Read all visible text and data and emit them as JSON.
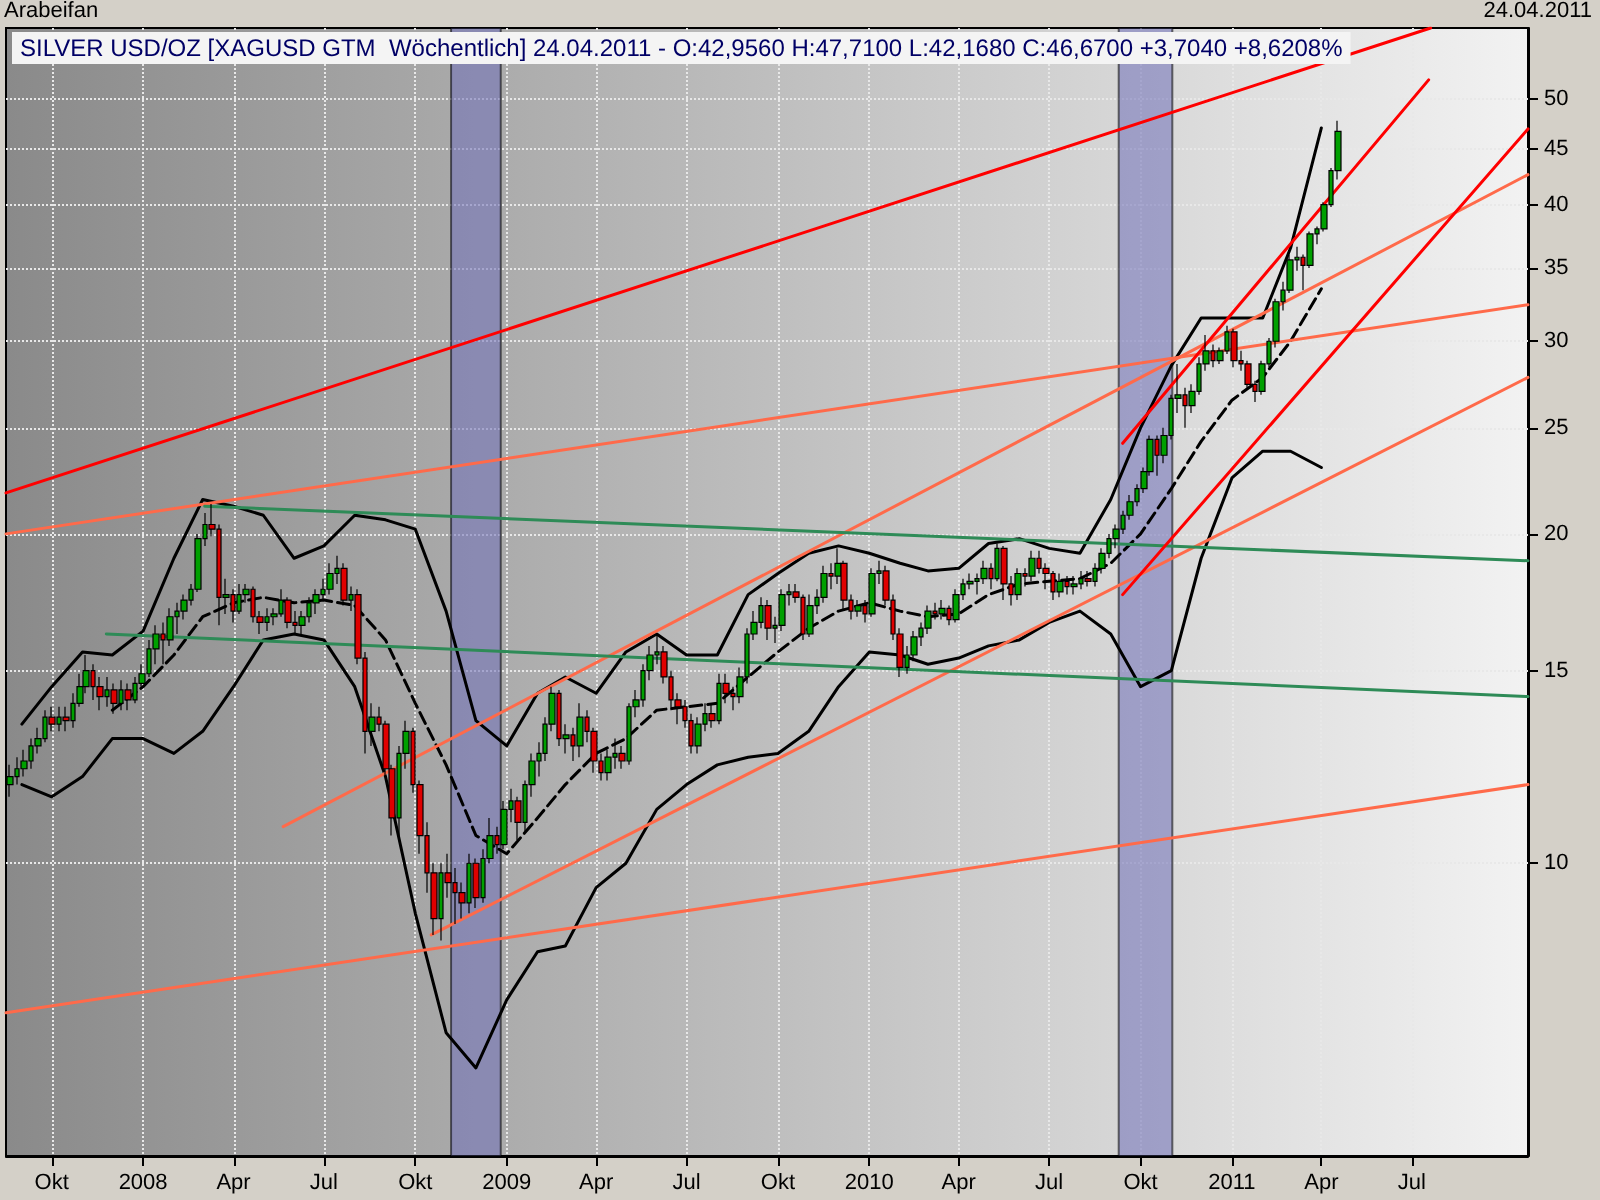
{
  "chart_data": {
    "type": "candlestick",
    "title": "SILVER USD/OZ [XAGUSD GTM  Wöchentlich] 24.04.2011 - O:42,9560 H:47,7100 L:42,1680 C:46,6700 +3,7040 +8,6208%",
    "annotations": [
      "Arabeifan",
      "24.04.2011"
    ],
    "log": "y",
    "grid": true,
    "xlim": [
      "2007-08-16",
      "2011-10-26"
    ],
    "xticks": [
      {
        "value": "2007-10",
        "label": "Okt"
      },
      {
        "value": "2008-01",
        "label": "2008"
      },
      {
        "value": "2008-04",
        "label": "Apr"
      },
      {
        "value": "2008-07",
        "label": "Jul"
      },
      {
        "value": "2008-10",
        "label": "Okt"
      },
      {
        "value": "2009-01",
        "label": "2009"
      },
      {
        "value": "2009-04",
        "label": "Apr"
      },
      {
        "value": "2009-07",
        "label": "Jul"
      },
      {
        "value": "2009-10",
        "label": "Okt"
      },
      {
        "value": "2010-01",
        "label": "2010"
      },
      {
        "value": "2010-04",
        "label": "Apr"
      },
      {
        "value": "2010-07",
        "label": "Jul"
      },
      {
        "value": "2010-10",
        "label": "Okt"
      },
      {
        "value": "2011-01",
        "label": "2011"
      },
      {
        "value": "2011-04",
        "label": "Apr"
      },
      {
        "value": "2011-07",
        "label": "Jul"
      }
    ],
    "ylim": [
      5.4,
      58
    ],
    "yticks": [
      10,
      15,
      20,
      25,
      30,
      35,
      40,
      45,
      50
    ],
    "bands": [
      {
        "axis": "x",
        "from": "2008-11-06",
        "to": "2008-12-26",
        "color": "#7070b8"
      },
      {
        "axis": "x",
        "from": "2010-09-09",
        "to": "2010-11-02",
        "color": "#7070b8"
      }
    ],
    "series": [
      {
        "type": "line",
        "color": "#000000",
        "line_style": "solid",
        "x": [
          "2007-09",
          "2007-10",
          "2007-11",
          "2007-12",
          "2008-01",
          "2008-02",
          "2008-03",
          "2008-04",
          "2008-05",
          "2008-06",
          "2008-07",
          "2008-08",
          "2008-09",
          "2008-10",
          "2008-11",
          "2008-12",
          "2009-01",
          "2009-02",
          "2009-03",
          "2009-04",
          "2009-05",
          "2009-06",
          "2009-07",
          "2009-08",
          "2009-09",
          "2009-10",
          "2009-11",
          "2009-12",
          "2010-01",
          "2010-02",
          "2010-03",
          "2010-04",
          "2010-05",
          "2010-06",
          "2010-07",
          "2010-08",
          "2010-09",
          "2010-10",
          "2010-11",
          "2010-12",
          "2011-01",
          "2011-02",
          "2011-03",
          "2011-04"
        ],
        "values": [
          13.4,
          14.5,
          15.6,
          15.5,
          16.3,
          19,
          21.5,
          21.2,
          20.8,
          19,
          19.5,
          20.8,
          20.6,
          20.2,
          17,
          13.5,
          12.8,
          14.3,
          14.8,
          14.3,
          15.6,
          16.2,
          15.5,
          15.5,
          17.6,
          18.4,
          19.2,
          19.5,
          19.2,
          18.8,
          18.5,
          18.6,
          19.6,
          19.8,
          19.4,
          19.2,
          21.5,
          25,
          28.5,
          31.5,
          31.5,
          31.5,
          36.5,
          47
        ]
      },
      {
        "type": "line",
        "color": "#000000",
        "line_style": "solid",
        "x": [
          "2007-09",
          "2007-10",
          "2007-11",
          "2007-12",
          "2008-01",
          "2008-02",
          "2008-03",
          "2008-04",
          "2008-05",
          "2008-06",
          "2008-07",
          "2008-08",
          "2008-09",
          "2008-10",
          "2008-11",
          "2008-12",
          "2009-01",
          "2009-02",
          "2009-03",
          "2009-04",
          "2009-05",
          "2009-06",
          "2009-07",
          "2009-08",
          "2009-09",
          "2009-10",
          "2009-11",
          "2009-12",
          "2010-01",
          "2010-02",
          "2010-03",
          "2010-04",
          "2010-05",
          "2010-06",
          "2010-07",
          "2010-08",
          "2010-09",
          "2010-10",
          "2010-11",
          "2010-12",
          "2011-01",
          "2011-02",
          "2011-03",
          "2011-04"
        ],
        "values": [
          11.8,
          11.5,
          12,
          13,
          13,
          12.6,
          13.2,
          14.5,
          16,
          16.2,
          16,
          14.5,
          12,
          9,
          7,
          6.5,
          7.5,
          8.3,
          8.4,
          9.5,
          10,
          11.2,
          11.8,
          12.3,
          12.5,
          12.6,
          13.2,
          14.5,
          15.6,
          15.5,
          15.2,
          15.4,
          15.8,
          16,
          16.6,
          17,
          16.2,
          14.5,
          15,
          19,
          22.5,
          23.8,
          23.8,
          23
        ]
      },
      {
        "type": "line",
        "color": "#000000",
        "line_style": "dashed",
        "x": [
          "2007-12",
          "2008-01",
          "2008-02",
          "2008-03",
          "2008-04",
          "2008-05",
          "2008-06",
          "2008-07",
          "2008-08",
          "2008-09",
          "2008-10",
          "2008-11",
          "2008-12",
          "2009-01",
          "2009-02",
          "2009-03",
          "2009-04",
          "2009-05",
          "2009-06",
          "2009-07",
          "2009-08",
          "2009-09",
          "2009-10",
          "2009-11",
          "2009-12",
          "2010-01",
          "2010-02",
          "2010-03",
          "2010-04",
          "2010-05",
          "2010-06",
          "2010-07",
          "2010-08",
          "2010-09",
          "2010-10",
          "2010-11",
          "2010-12",
          "2011-01",
          "2011-02",
          "2011-03",
          "2011-04"
        ],
        "values": [
          13.8,
          14.5,
          15.5,
          16.8,
          17.3,
          17.5,
          17.3,
          17.4,
          17.2,
          16,
          14,
          12.3,
          10.6,
          10.2,
          11,
          11.8,
          12.6,
          13,
          13.8,
          13.9,
          14,
          14.8,
          15.6,
          16.4,
          17,
          17.3,
          17,
          16.8,
          16.9,
          17.6,
          18,
          18.1,
          18.2,
          18.8,
          20,
          22,
          24.3,
          26.5,
          27.8,
          30,
          33.5
        ]
      },
      {
        "type": "line",
        "color": "#ff0000",
        "line_style": "solid",
        "x": [
          "2007-08-16",
          "2011-07-20"
        ],
        "values": [
          21.8,
          58
        ]
      },
      {
        "type": "line",
        "color": "#ff6a4a",
        "line_style": "solid",
        "x": [
          "2007-08-16",
          "2011-10-26"
        ],
        "values": [
          20,
          32.4
        ]
      },
      {
        "type": "line",
        "color": "#ff6a4a",
        "line_style": "solid",
        "x": [
          "2008-05-21",
          "2011-10-26"
        ],
        "values": [
          10.8,
          42.6
        ]
      },
      {
        "type": "line",
        "color": "#ff6a4a",
        "line_style": "solid",
        "x": [
          "2008-10-17",
          "2011-10-26"
        ],
        "values": [
          8.6,
          27.8
        ]
      },
      {
        "type": "line",
        "color": "#ff6a4a",
        "line_style": "solid",
        "x": [
          "2007-08-16",
          "2011-10-26"
        ],
        "values": [
          7.3,
          11.8
        ]
      },
      {
        "type": "line",
        "color": "#2e8b57",
        "line_style": "solid",
        "x": [
          "2008-03-03",
          "2011-10-26"
        ],
        "values": [
          21.2,
          18.9
        ]
      },
      {
        "type": "line",
        "color": "#2e8b57",
        "line_style": "solid",
        "x": [
          "2007-11-25",
          "2011-10-26"
        ],
        "values": [
          16.2,
          14.2
        ]
      },
      {
        "type": "line",
        "color": "#ff0000",
        "line_style": "solid",
        "x": [
          "2010-09-13",
          "2011-07-18"
        ],
        "values": [
          24.2,
          52
        ]
      },
      {
        "type": "line",
        "color": "#ff0000",
        "line_style": "solid",
        "x": [
          "2010-09-13",
          "2011-10-26"
        ],
        "values": [
          17.6,
          46.9
        ]
      },
      {
        "color": "#00a000",
        "x": [
          "2007-08-20",
          "2007-08-27",
          "2007-09-03",
          "2007-09-10",
          "2007-09-17",
          "2007-09-24",
          "2007-10-08",
          "2007-10-22",
          "2007-10-29",
          "2007-11-05",
          "2007-11-26",
          "2007-12-10",
          "2007-12-24",
          "2007-12-31",
          "2008-01-07",
          "2008-01-14",
          "2008-01-28",
          "2008-02-04",
          "2008-02-11",
          "2008-02-18",
          "2008-02-25",
          "2008-03-03",
          "2008-03-24",
          "2008-04-07",
          "2008-04-14",
          "2008-05-05",
          "2008-05-12",
          "2008-05-19",
          "2008-06-09",
          "2008-06-16",
          "2008-06-23",
          "2008-06-30",
          "2008-07-07",
          "2008-07-14",
          "2008-07-28",
          "2008-08-18",
          "2008-09-15",
          "2008-09-22",
          "2008-10-27",
          "2008-11-24",
          "2008-12-08",
          "2008-12-15",
          "2008-12-29",
          "2009-01-05",
          "2009-01-19",
          "2009-01-26",
          "2009-02-02",
          "2009-02-09",
          "2009-02-16",
          "2009-03-02",
          "2009-03-16",
          "2009-04-13",
          "2009-04-20",
          "2009-05-04",
          "2009-05-11",
          "2009-05-18",
          "2009-05-25",
          "2009-06-01",
          "2009-07-13",
          "2009-07-20",
          "2009-08-03",
          "2009-08-24",
          "2009-08-31",
          "2009-09-07",
          "2009-09-14",
          "2009-09-28",
          "2009-10-05",
          "2009-10-12",
          "2009-11-02",
          "2009-11-09",
          "2009-11-16",
          "2009-11-30",
          "2009-12-21",
          "2010-01-04",
          "2010-01-11",
          "2010-02-08",
          "2010-02-15",
          "2010-02-22",
          "2010-03-01",
          "2010-03-15",
          "2010-03-29",
          "2010-04-05",
          "2010-04-12",
          "2010-04-19",
          "2010-04-26",
          "2010-05-10",
          "2010-05-31",
          "2010-06-14",
          "2010-07-12",
          "2010-07-26",
          "2010-08-02",
          "2010-08-16",
          "2010-08-23",
          "2010-08-30",
          "2010-09-06",
          "2010-09-13",
          "2010-09-20",
          "2010-09-27",
          "2010-10-04",
          "2010-10-11",
          "2010-10-25",
          "2010-11-01",
          "2010-11-08",
          "2010-11-22",
          "2010-11-29",
          "2010-12-06",
          "2010-12-20",
          "2010-12-27",
          "2011-01-31",
          "2011-02-07",
          "2011-02-14",
          "2011-02-21",
          "2011-02-28",
          "2011-03-07",
          "2011-03-21",
          "2011-03-28",
          "2011-04-04",
          "2011-04-11",
          "2011-04-18"
        ],
        "ohlc": [
          [
            11.8,
            12.3,
            11.5,
            12.0
          ],
          [
            12.0,
            12.5,
            11.8,
            12.2
          ],
          [
            12.2,
            12.7,
            12.0,
            12.4
          ],
          [
            12.4,
            13.0,
            12.2,
            12.8
          ],
          [
            12.8,
            13.3,
            12.6,
            13.0
          ],
          [
            13.0,
            13.8,
            12.9,
            13.6
          ],
          [
            13.4,
            13.9,
            13.2,
            13.6
          ],
          [
            13.5,
            14.3,
            13.3,
            14.0
          ],
          [
            14.0,
            14.9,
            13.9,
            14.5
          ],
          [
            14.5,
            15.5,
            14.3,
            15.0
          ],
          [
            14.2,
            14.8,
            13.9,
            14.4
          ],
          [
            14.0,
            14.7,
            13.8,
            14.4
          ],
          [
            14.1,
            14.8,
            14.0,
            14.6
          ],
          [
            14.6,
            15.2,
            14.5,
            14.9
          ],
          [
            14.9,
            16.0,
            14.8,
            15.7
          ],
          [
            15.7,
            16.5,
            15.2,
            16.2
          ],
          [
            16.0,
            17.1,
            15.8,
            16.8
          ],
          [
            16.8,
            17.3,
            16.2,
            17.0
          ],
          [
            17.0,
            17.6,
            16.7,
            17.4
          ],
          [
            17.4,
            18.0,
            17.2,
            17.8
          ],
          [
            17.8,
            20.0,
            17.7,
            19.8
          ],
          [
            19.8,
            20.9,
            19.5,
            20.4
          ],
          [
            17.5,
            18.2,
            16.9,
            17.6
          ],
          [
            17.0,
            18.0,
            16.9,
            17.6
          ],
          [
            17.6,
            18.0,
            17.3,
            17.8
          ],
          [
            16.6,
            17.1,
            16.3,
            16.8
          ],
          [
            16.8,
            17.1,
            16.5,
            16.9
          ],
          [
            16.9,
            17.8,
            16.8,
            17.4
          ],
          [
            16.5,
            17.0,
            16.2,
            16.8
          ],
          [
            16.8,
            17.5,
            16.6,
            17.3
          ],
          [
            17.3,
            17.8,
            16.9,
            17.6
          ],
          [
            17.6,
            18.2,
            17.4,
            17.8
          ],
          [
            17.8,
            18.8,
            17.6,
            18.4
          ],
          [
            18.4,
            19.1,
            18.0,
            18.6
          ],
          [
            17.4,
            17.9,
            17.0,
            17.6
          ],
          [
            13.2,
            14.0,
            12.8,
            13.6
          ],
          [
            11.0,
            12.8,
            10.5,
            12.6
          ],
          [
            12.6,
            13.5,
            12.2,
            13.2
          ],
          [
            8.9,
            10.0,
            8.5,
            9.8
          ],
          [
            9.2,
            10.2,
            9.0,
            10.0
          ],
          [
            9.3,
            10.3,
            9.2,
            10.1
          ],
          [
            10.1,
            11.0,
            10.0,
            10.6
          ],
          [
            10.4,
            11.4,
            10.3,
            11.2
          ],
          [
            11.2,
            11.7,
            10.9,
            11.4
          ],
          [
            10.9,
            11.9,
            10.7,
            11.8
          ],
          [
            11.8,
            12.6,
            11.5,
            12.4
          ],
          [
            12.4,
            12.9,
            12.0,
            12.6
          ],
          [
            12.6,
            13.6,
            12.4,
            13.4
          ],
          [
            13.4,
            14.5,
            13.2,
            14.3
          ],
          [
            13.0,
            13.4,
            12.6,
            13.1
          ],
          [
            12.8,
            14.0,
            12.5,
            13.6
          ],
          [
            12.1,
            12.7,
            11.9,
            12.5
          ],
          [
            12.5,
            13.0,
            12.2,
            12.6
          ],
          [
            12.4,
            14.0,
            12.3,
            13.9
          ],
          [
            13.9,
            14.4,
            13.6,
            14.1
          ],
          [
            14.1,
            15.2,
            13.9,
            15.0
          ],
          [
            15.0,
            15.8,
            14.7,
            15.5
          ],
          [
            15.5,
            16.2,
            15.2,
            15.6
          ],
          [
            12.8,
            13.6,
            12.6,
            13.4
          ],
          [
            13.4,
            14.0,
            13.2,
            13.7
          ],
          [
            13.5,
            14.9,
            13.4,
            14.6
          ],
          [
            14.2,
            15.1,
            14.0,
            14.8
          ],
          [
            14.8,
            16.4,
            14.6,
            16.2
          ],
          [
            16.2,
            17.0,
            16.0,
            16.6
          ],
          [
            16.6,
            17.5,
            16.4,
            17.2
          ],
          [
            16.4,
            16.8,
            15.9,
            16.5
          ],
          [
            16.5,
            17.8,
            16.3,
            17.6
          ],
          [
            17.6,
            18.0,
            17.2,
            17.7
          ],
          [
            16.2,
            17.6,
            16.1,
            17.2
          ],
          [
            17.2,
            17.8,
            16.9,
            17.5
          ],
          [
            17.5,
            18.7,
            17.3,
            18.4
          ],
          [
            18.3,
            19.4,
            18.0,
            18.8
          ],
          [
            17.0,
            17.4,
            16.8,
            17.2
          ],
          [
            16.9,
            18.6,
            16.8,
            18.4
          ],
          [
            18.4,
            18.9,
            18.0,
            18.5
          ],
          [
            15.1,
            15.8,
            14.9,
            15.5
          ],
          [
            15.5,
            16.3,
            15.3,
            16.1
          ],
          [
            16.1,
            16.6,
            15.8,
            16.4
          ],
          [
            16.4,
            17.2,
            16.2,
            17.0
          ],
          [
            16.9,
            17.4,
            16.7,
            17.1
          ],
          [
            16.7,
            17.8,
            16.6,
            17.6
          ],
          [
            17.6,
            18.2,
            17.4,
            18.0
          ],
          [
            18.0,
            18.4,
            17.8,
            18.1
          ],
          [
            18.1,
            18.4,
            17.6,
            18.2
          ],
          [
            18.2,
            18.9,
            18.0,
            18.6
          ],
          [
            18.2,
            19.6,
            18.1,
            19.4
          ],
          [
            17.6,
            18.6,
            17.4,
            18.4
          ],
          [
            18.3,
            19.3,
            18.1,
            19.0
          ],
          [
            17.7,
            18.4,
            17.5,
            18.1
          ],
          [
            17.9,
            18.3,
            17.6,
            18.0
          ],
          [
            18.0,
            18.5,
            17.8,
            18.2
          ],
          [
            18.1,
            18.8,
            17.9,
            18.6
          ],
          [
            18.6,
            19.4,
            18.4,
            19.2
          ],
          [
            19.2,
            20.0,
            19.0,
            19.8
          ],
          [
            19.8,
            20.4,
            19.4,
            20.2
          ],
          [
            20.2,
            21.0,
            20.0,
            20.8
          ],
          [
            20.8,
            21.7,
            20.6,
            21.4
          ],
          [
            21.4,
            22.2,
            21.2,
            22.0
          ],
          [
            22.0,
            23.0,
            21.8,
            22.8
          ],
          [
            22.8,
            24.6,
            22.6,
            24.4
          ],
          [
            23.6,
            25.0,
            23.2,
            24.6
          ],
          [
            24.6,
            26.8,
            24.4,
            26.6
          ],
          [
            26.6,
            28.6,
            25.8,
            26.8
          ],
          [
            26.2,
            27.4,
            25.8,
            27.0
          ],
          [
            27.0,
            29.0,
            26.8,
            28.6
          ],
          [
            28.6,
            30.4,
            28.2,
            29.4
          ],
          [
            28.8,
            29.6,
            28.6,
            29.4
          ],
          [
            29.4,
            31.0,
            29.2,
            30.6
          ],
          [
            27.0,
            28.8,
            26.8,
            28.6
          ],
          [
            28.6,
            30.2,
            28.4,
            30.0
          ],
          [
            30.0,
            32.8,
            29.6,
            32.6
          ],
          [
            32.6,
            34.0,
            32.0,
            33.4
          ],
          [
            33.4,
            36.0,
            33.2,
            35.6
          ],
          [
            35.6,
            36.6,
            34.8,
            35.8
          ],
          [
            35.2,
            37.8,
            35.0,
            37.6
          ],
          [
            37.6,
            38.2,
            36.8,
            38.0
          ],
          [
            38.0,
            40.2,
            37.8,
            40.0
          ],
          [
            40.0,
            43.2,
            39.8,
            42.956
          ],
          [
            42.956,
            47.71,
            42.168,
            46.667
          ]
        ]
      },
      {
        "color": "#e00000",
        "x": [
          "2007-10-01",
          "2007-10-15",
          "2007-11-12",
          "2007-11-19",
          "2007-12-03",
          "2007-12-17",
          "2008-01-21",
          "2008-03-10",
          "2008-03-17",
          "2008-03-31",
          "2008-04-21",
          "2008-04-28",
          "2008-05-26",
          "2008-06-02",
          "2008-07-21",
          "2008-08-04",
          "2008-08-11",
          "2008-08-25",
          "2008-09-01",
          "2008-09-08",
          "2008-09-29",
          "2008-10-06",
          "2008-10-13",
          "2008-10-20",
          "2008-11-03",
          "2008-11-10",
          "2008-11-17",
          "2008-12-01",
          "2008-12-22",
          "2009-01-12",
          "2009-02-23",
          "2009-03-09",
          "2009-03-23",
          "2009-03-30",
          "2009-04-06",
          "2009-04-27",
          "2009-06-08",
          "2009-06-15",
          "2009-06-22",
          "2009-06-29",
          "2009-07-06",
          "2009-07-27",
          "2009-08-10",
          "2009-08-17",
          "2009-09-21",
          "2009-10-19",
          "2009-10-26",
          "2009-11-23",
          "2009-12-07",
          "2009-12-14",
          "2009-12-28",
          "2010-01-18",
          "2010-01-25",
          "2010-02-01",
          "2010-03-08",
          "2010-03-22",
          "2010-05-03",
          "2010-05-17",
          "2010-05-24",
          "2010-06-07",
          "2010-06-21",
          "2010-06-28",
          "2010-07-05",
          "2010-07-19",
          "2010-08-09",
          "2010-10-18",
          "2010-11-15",
          "2010-12-13",
          "2011-01-03",
          "2011-01-10",
          "2011-01-17",
          "2011-01-24",
          "2011-03-14"
        ],
        "ohlc": [
          [
            13.6,
            13.9,
            13.2,
            13.4
          ],
          [
            13.6,
            13.9,
            13.2,
            13.5
          ],
          [
            15.0,
            15.2,
            14.1,
            14.5
          ],
          [
            14.5,
            14.8,
            13.8,
            14.2
          ],
          [
            14.4,
            14.6,
            13.7,
            14.0
          ],
          [
            14.4,
            14.6,
            13.8,
            14.1
          ],
          [
            16.2,
            16.6,
            15.2,
            16.0
          ],
          [
            20.4,
            21.3,
            19.9,
            20.2
          ],
          [
            20.2,
            20.4,
            16.5,
            17.5
          ],
          [
            17.6,
            17.8,
            16.6,
            17.0
          ],
          [
            17.8,
            17.9,
            16.6,
            16.8
          ],
          [
            16.8,
            17.0,
            16.2,
            16.6
          ],
          [
            17.4,
            17.5,
            16.4,
            16.6
          ],
          [
            16.6,
            17.0,
            16.2,
            16.5
          ],
          [
            18.6,
            18.8,
            17.2,
            17.4
          ],
          [
            17.6,
            17.8,
            15.2,
            15.4
          ],
          [
            15.4,
            15.6,
            12.6,
            13.2
          ],
          [
            13.6,
            13.9,
            13.2,
            13.4
          ],
          [
            13.4,
            13.5,
            12.0,
            12.2
          ],
          [
            12.2,
            12.3,
            10.6,
            11.0
          ],
          [
            13.2,
            13.3,
            11.6,
            11.8
          ],
          [
            11.8,
            11.9,
            10.2,
            10.6
          ],
          [
            10.6,
            10.9,
            9.4,
            9.8
          ],
          [
            9.8,
            10.0,
            8.6,
            8.9
          ],
          [
            9.8,
            10.2,
            9.3,
            9.6
          ],
          [
            9.6,
            9.9,
            8.8,
            9.4
          ],
          [
            9.4,
            9.6,
            8.9,
            9.2
          ],
          [
            10.0,
            10.1,
            9.1,
            9.3
          ],
          [
            10.6,
            10.8,
            10.2,
            10.4
          ],
          [
            11.4,
            11.5,
            10.5,
            10.9
          ],
          [
            14.3,
            14.4,
            12.8,
            13.0
          ],
          [
            13.1,
            13.3,
            12.4,
            12.8
          ],
          [
            13.6,
            13.8,
            12.9,
            13.2
          ],
          [
            13.2,
            13.3,
            12.1,
            12.4
          ],
          [
            12.4,
            12.6,
            11.9,
            12.1
          ],
          [
            12.6,
            12.8,
            12.2,
            12.4
          ],
          [
            15.6,
            15.8,
            14.6,
            14.8
          ],
          [
            14.8,
            15.0,
            13.8,
            14.1
          ],
          [
            14.1,
            14.3,
            13.4,
            13.9
          ],
          [
            13.9,
            14.1,
            13.3,
            13.5
          ],
          [
            13.5,
            13.7,
            12.6,
            12.8
          ],
          [
            13.7,
            14.0,
            13.3,
            13.5
          ],
          [
            14.6,
            14.9,
            14.0,
            14.3
          ],
          [
            14.3,
            14.5,
            13.8,
            14.2
          ],
          [
            17.2,
            17.4,
            16.0,
            16.4
          ],
          [
            17.7,
            18.0,
            17.3,
            17.5
          ],
          [
            17.5,
            17.6,
            16.0,
            16.2
          ],
          [
            18.4,
            18.8,
            17.8,
            18.3
          ],
          [
            18.8,
            18.9,
            17.0,
            17.4
          ],
          [
            17.4,
            17.6,
            16.7,
            17.0
          ],
          [
            17.2,
            17.4,
            16.6,
            16.9
          ],
          [
            18.5,
            18.7,
            17.2,
            17.4
          ],
          [
            17.4,
            17.6,
            16.0,
            16.2
          ],
          [
            16.2,
            16.4,
            14.8,
            15.1
          ],
          [
            17.0,
            17.3,
            16.7,
            16.9
          ],
          [
            17.1,
            17.2,
            16.5,
            16.7
          ],
          [
            18.6,
            18.8,
            17.8,
            18.2
          ],
          [
            19.4,
            19.5,
            17.4,
            18.0
          ],
          [
            18.0,
            18.3,
            17.2,
            17.6
          ],
          [
            18.4,
            18.6,
            17.9,
            18.3
          ],
          [
            19.0,
            19.3,
            18.4,
            18.6
          ],
          [
            18.6,
            18.8,
            17.8,
            18.4
          ],
          [
            18.4,
            18.5,
            17.4,
            17.7
          ],
          [
            18.1,
            18.3,
            17.6,
            17.9
          ],
          [
            18.2,
            18.5,
            17.9,
            18.1
          ],
          [
            24.4,
            24.6,
            22.6,
            23.6
          ],
          [
            26.8,
            27.2,
            25.0,
            26.2
          ],
          [
            29.4,
            29.8,
            28.4,
            28.8
          ],
          [
            30.6,
            30.8,
            28.4,
            28.8
          ],
          [
            28.8,
            29.4,
            28.2,
            28.6
          ],
          [
            28.6,
            28.8,
            27.2,
            27.4
          ],
          [
            27.4,
            27.6,
            26.4,
            27.0
          ],
          [
            35.8,
            36.0,
            33.4,
            35.2
          ]
        ]
      }
    ]
  }
}
